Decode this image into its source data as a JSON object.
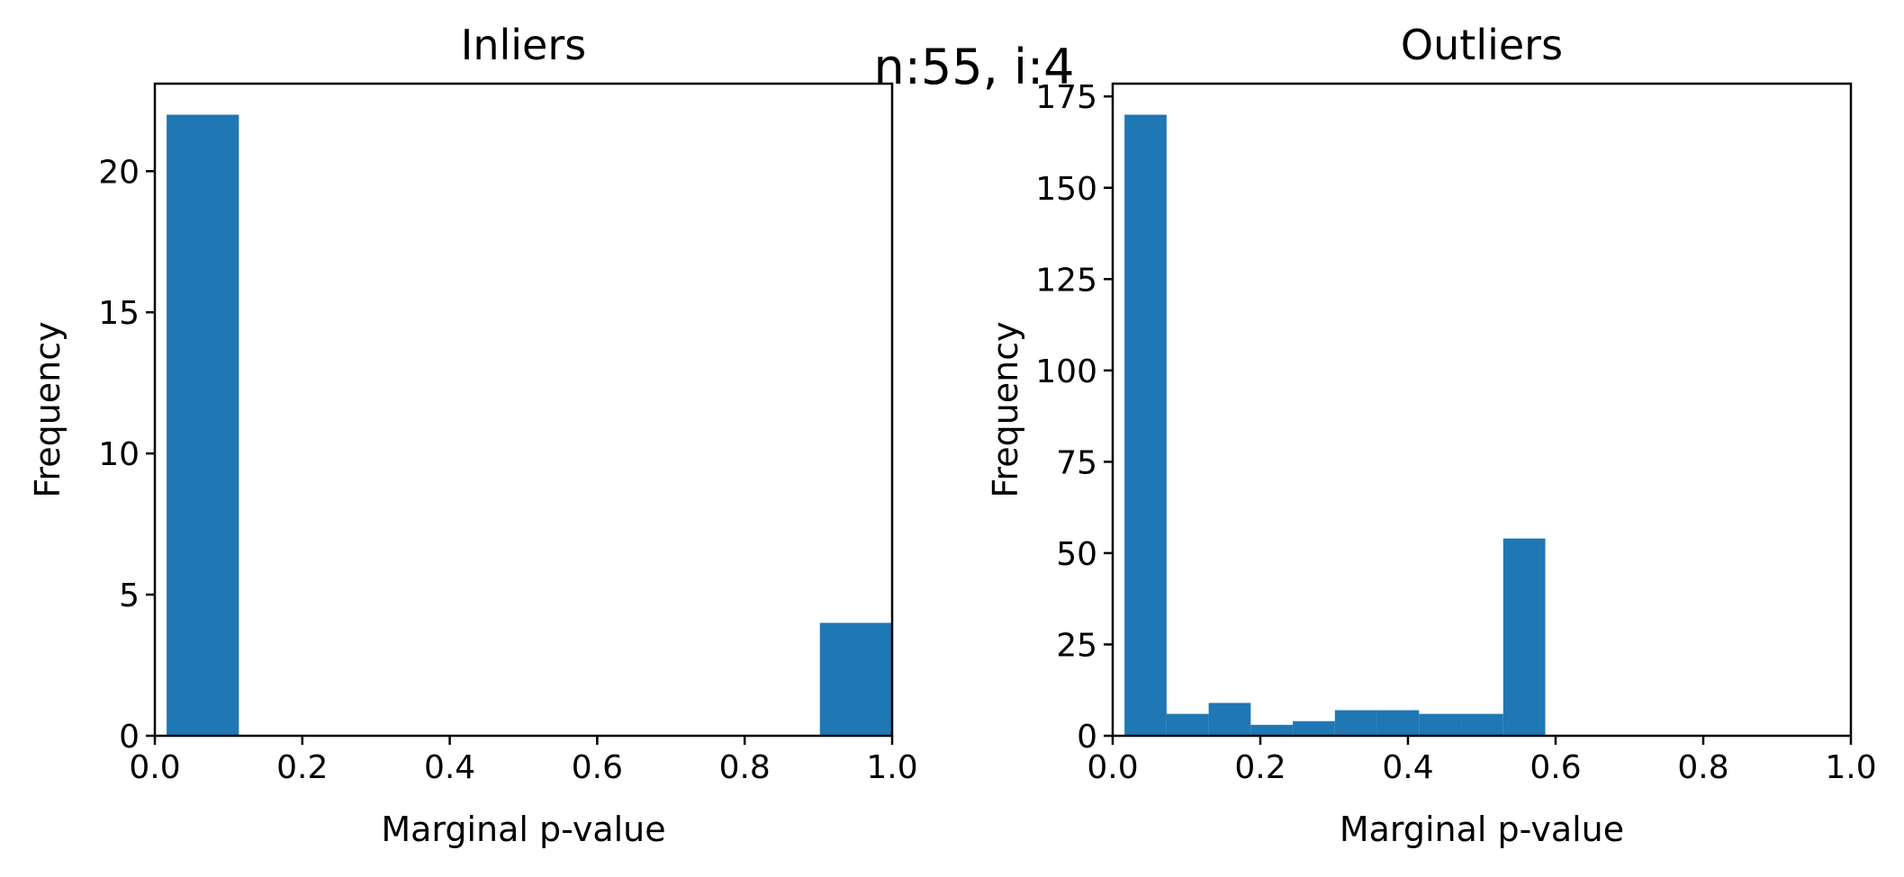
{
  "figure": {
    "suptitle": "n:55, i:4"
  },
  "chart_data": [
    {
      "type": "bar",
      "title": "Inliers",
      "xlabel": "Marginal p-value",
      "ylabel": "Frequency",
      "xlim": [
        0.0,
        1.0
      ],
      "ylim": [
        0,
        23.1
      ],
      "xticks": [
        0.0,
        0.2,
        0.4,
        0.6,
        0.8,
        1.0
      ],
      "xtick_labels": [
        "0.0",
        "0.2",
        "0.4",
        "0.6",
        "0.8",
        "1.0"
      ],
      "yticks": [
        0,
        5,
        10,
        15,
        20
      ],
      "ytick_labels": [
        "0",
        "5",
        "10",
        "15",
        "20"
      ],
      "grid": false,
      "color": "#1f77b4",
      "bins": [
        {
          "x0": 0.016,
          "x1": 0.114,
          "count": 22
        },
        {
          "x0": 0.114,
          "x1": 0.213,
          "count": 0
        },
        {
          "x0": 0.213,
          "x1": 0.311,
          "count": 0
        },
        {
          "x0": 0.311,
          "x1": 0.41,
          "count": 0
        },
        {
          "x0": 0.41,
          "x1": 0.508,
          "count": 0
        },
        {
          "x0": 0.508,
          "x1": 0.606,
          "count": 0
        },
        {
          "x0": 0.606,
          "x1": 0.705,
          "count": 0
        },
        {
          "x0": 0.705,
          "x1": 0.803,
          "count": 0
        },
        {
          "x0": 0.803,
          "x1": 0.902,
          "count": 0
        },
        {
          "x0": 0.902,
          "x1": 1.0,
          "count": 4
        }
      ]
    },
    {
      "type": "bar",
      "title": "Outliers",
      "xlabel": "Marginal p-value",
      "ylabel": "Frequency",
      "xlim": [
        0.0,
        1.0
      ],
      "ylim": [
        0,
        178.5
      ],
      "xticks": [
        0.0,
        0.2,
        0.4,
        0.6,
        0.8,
        1.0
      ],
      "xtick_labels": [
        "0.0",
        "0.2",
        "0.4",
        "0.6",
        "0.8",
        "1.0"
      ],
      "yticks": [
        0,
        25,
        50,
        75,
        100,
        125,
        150,
        175
      ],
      "ytick_labels": [
        "0",
        "25",
        "50",
        "75",
        "100",
        "125",
        "150",
        "175"
      ],
      "grid": false,
      "color": "#1f77b4",
      "bins": [
        {
          "x0": 0.016,
          "x1": 0.073,
          "count": 170
        },
        {
          "x0": 0.073,
          "x1": 0.13,
          "count": 6
        },
        {
          "x0": 0.13,
          "x1": 0.187,
          "count": 9
        },
        {
          "x0": 0.187,
          "x1": 0.244,
          "count": 3
        },
        {
          "x0": 0.244,
          "x1": 0.301,
          "count": 4
        },
        {
          "x0": 0.301,
          "x1": 0.358,
          "count": 7
        },
        {
          "x0": 0.358,
          "x1": 0.415,
          "count": 7
        },
        {
          "x0": 0.415,
          "x1": 0.472,
          "count": 6
        },
        {
          "x0": 0.472,
          "x1": 0.529,
          "count": 6
        },
        {
          "x0": 0.529,
          "x1": 0.586,
          "count": 54
        }
      ]
    }
  ]
}
